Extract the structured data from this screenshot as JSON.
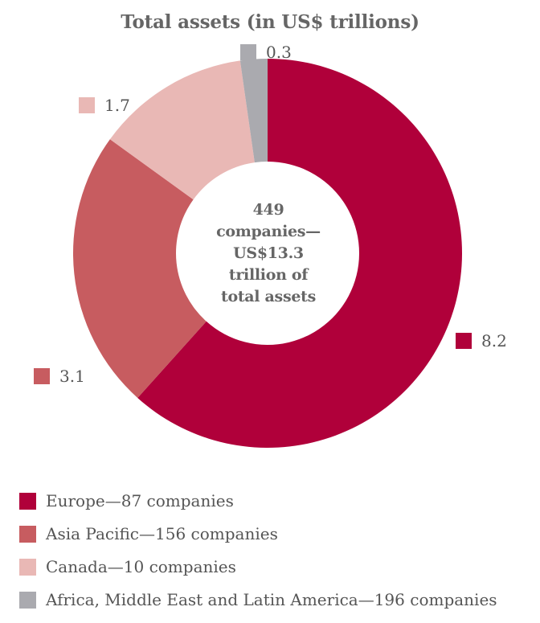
{
  "chart_data": {
    "type": "pie",
    "title": "Total assets (in US$ trillions)",
    "center_label": [
      "449",
      "companies—",
      "US$13.3",
      "trillion of",
      "total assets"
    ],
    "slices": [
      {
        "label": "Europe—87 companies",
        "value": 8.2,
        "value_label": "8.2",
        "color": "#b0003a"
      },
      {
        "label": "Asia Pacific—156 companies",
        "value": 3.1,
        "value_label": "3.1",
        "color": "#c75c60"
      },
      {
        "label": "Canada—10 companies",
        "value": 1.7,
        "value_label": "1.7",
        "color": "#e9b8b5"
      },
      {
        "label": "Africa, Middle East and Latin America—196 companies",
        "value": 0.3,
        "value_label": "0.3",
        "color": "#aaaaaf"
      }
    ],
    "legend_position": "bottom-left"
  }
}
